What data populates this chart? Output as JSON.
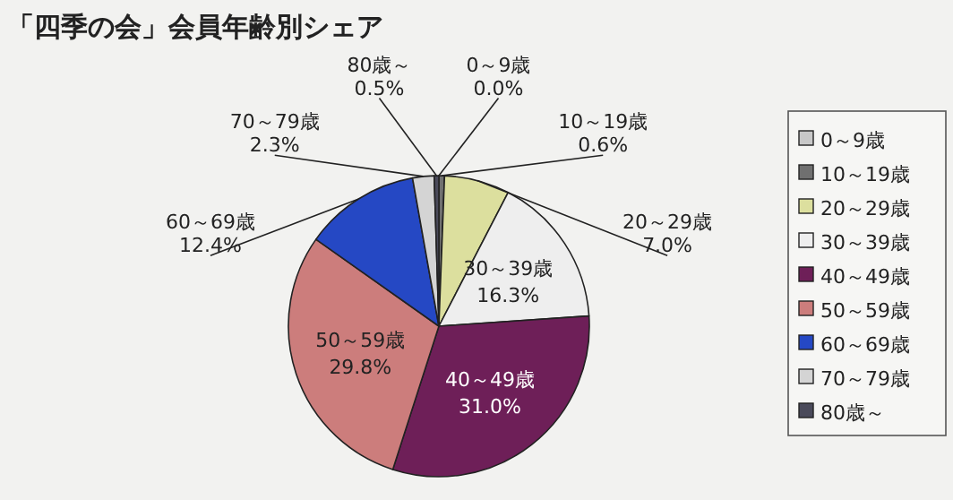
{
  "chart_data": {
    "type": "pie",
    "title": "「四季の会」会員年齢別シェア",
    "categories": [
      "0～9歳",
      "10～19歳",
      "20～29歳",
      "30～39歳",
      "40～49歳",
      "50～59歳",
      "60～69歳",
      "70～79歳",
      "80歳～"
    ],
    "values": [
      0.0,
      0.6,
      7.0,
      16.3,
      31.0,
      29.8,
      12.4,
      2.3,
      0.5
    ],
    "value_labels": [
      "0.0%",
      "0.6%",
      "7.0%",
      "16.3%",
      "31.0%",
      "29.8%",
      "12.4%",
      "2.3%",
      "0.5%"
    ],
    "colors": [
      "#c8c8c8",
      "#707070",
      "#dcdf9e",
      "#eeeeee",
      "#6e1f58",
      "#cc7d7c",
      "#2548c4",
      "#d4d4d4",
      "#4a4a5a"
    ],
    "legend": "right"
  }
}
